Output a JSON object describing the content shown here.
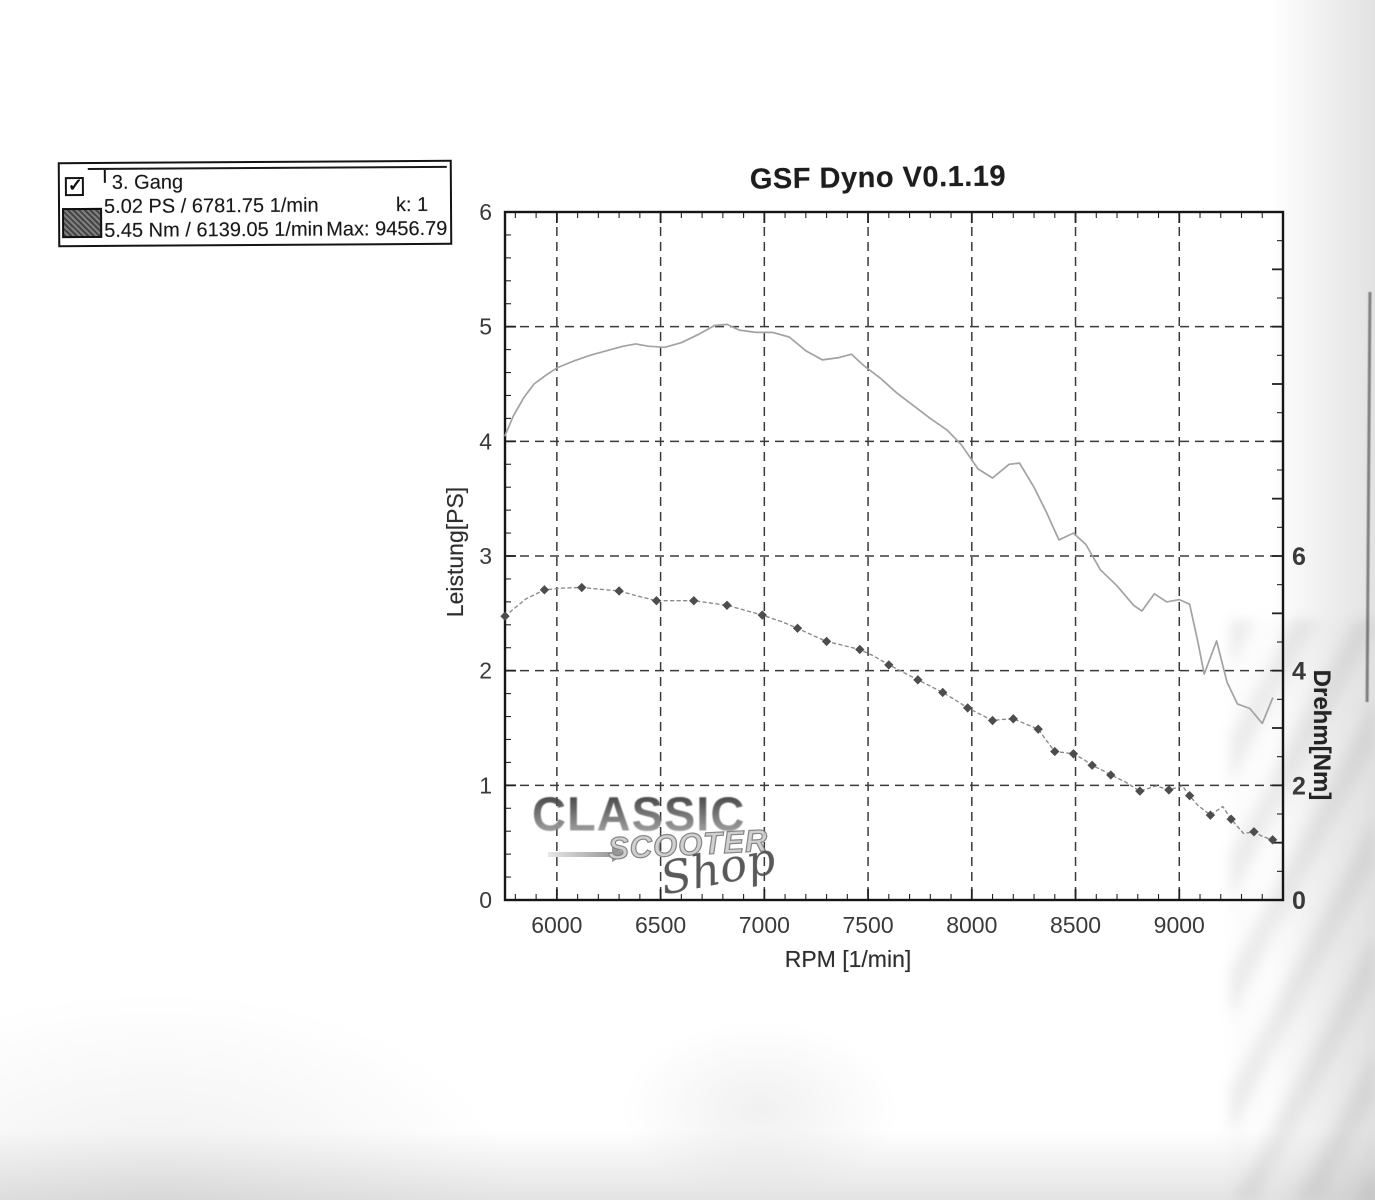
{
  "title": "GSF Dyno V0.1.19",
  "legend": {
    "checkbox_glyph": "✓",
    "gear_label": "3. Gang",
    "power_line": "5.02 PS / 6781.75 1/min",
    "k_label": "k: 1",
    "torque_line": "5.45 Nm / 6139.05 1/min",
    "max_label": "Max: 9456.79"
  },
  "watermark": {
    "line1": "CLASSIC",
    "line2": "SCOOTER",
    "line3": "Shop"
  },
  "chart_data": {
    "type": "line",
    "title": "GSF Dyno V0.1.19",
    "xlabel": "RPM [1/min]",
    "ylabel_left": "Leistung[PS]",
    "ylabel_right": "Drehm[Nm]",
    "x_range": [
      5750,
      9500
    ],
    "y_left_range": [
      0,
      6
    ],
    "y_right_range": [
      0,
      12
    ],
    "x_ticks": [
      6000,
      6500,
      7000,
      7500,
      8000,
      8500,
      9000
    ],
    "y_left_ticks": [
      0,
      1,
      2,
      3,
      4,
      5,
      6
    ],
    "y_right_ticks": [
      0,
      2,
      4,
      6
    ],
    "x_minor_step": 100,
    "y_left_minor_step": 0.2,
    "y_right_minor_step": 0.5,
    "grid": "dashed",
    "grid_color": "#3a3a3a",
    "frame_color": "#161616",
    "label_color": "#3a3a3a",
    "series": [
      {
        "name": "Leistung (PS)",
        "axis": "left",
        "style": "solid",
        "color": "#a2a2a2",
        "peak": "5.02 PS @ 6781.75 1/min",
        "points": [
          [
            5750,
            4.05
          ],
          [
            5790,
            4.22
          ],
          [
            5840,
            4.38
          ],
          [
            5890,
            4.5
          ],
          [
            5950,
            4.58
          ],
          [
            6000,
            4.64
          ],
          [
            6080,
            4.7
          ],
          [
            6160,
            4.75
          ],
          [
            6240,
            4.79
          ],
          [
            6320,
            4.83
          ],
          [
            6380,
            4.85
          ],
          [
            6440,
            4.83
          ],
          [
            6520,
            4.82
          ],
          [
            6600,
            4.86
          ],
          [
            6680,
            4.93
          ],
          [
            6760,
            5.01
          ],
          [
            6820,
            5.02
          ],
          [
            6880,
            4.97
          ],
          [
            6960,
            4.95
          ],
          [
            7040,
            4.95
          ],
          [
            7120,
            4.91
          ],
          [
            7200,
            4.79
          ],
          [
            7280,
            4.71
          ],
          [
            7360,
            4.73
          ],
          [
            7420,
            4.76
          ],
          [
            7480,
            4.66
          ],
          [
            7560,
            4.55
          ],
          [
            7640,
            4.42
          ],
          [
            7720,
            4.31
          ],
          [
            7800,
            4.2
          ],
          [
            7880,
            4.1
          ],
          [
            7950,
            3.97
          ],
          [
            8030,
            3.76
          ],
          [
            8100,
            3.68
          ],
          [
            8180,
            3.8
          ],
          [
            8230,
            3.81
          ],
          [
            8300,
            3.6
          ],
          [
            8360,
            3.38
          ],
          [
            8420,
            3.14
          ],
          [
            8490,
            3.2
          ],
          [
            8550,
            3.1
          ],
          [
            8620,
            2.88
          ],
          [
            8700,
            2.74
          ],
          [
            8780,
            2.57
          ],
          [
            8820,
            2.52
          ],
          [
            8880,
            2.67
          ],
          [
            8940,
            2.6
          ],
          [
            9000,
            2.62
          ],
          [
            9050,
            2.58
          ],
          [
            9090,
            2.25
          ],
          [
            9120,
            1.97
          ],
          [
            9180,
            2.26
          ],
          [
            9230,
            1.9
          ],
          [
            9280,
            1.71
          ],
          [
            9340,
            1.67
          ],
          [
            9400,
            1.54
          ],
          [
            9450,
            1.76
          ]
        ]
      },
      {
        "name": "Drehm (Nm)",
        "axis": "right",
        "style": "dotted-markers",
        "color": "#8c8c8c",
        "marker_color": "#4d4d4d",
        "marker_every": 2,
        "peak": "5.45 Nm @ 6139.05 1/min",
        "points": [
          [
            5750,
            4.95
          ],
          [
            5850,
            5.25
          ],
          [
            5940,
            5.41
          ],
          [
            6030,
            5.44
          ],
          [
            6120,
            5.45
          ],
          [
            6210,
            5.42
          ],
          [
            6300,
            5.39
          ],
          [
            6390,
            5.3
          ],
          [
            6480,
            5.22
          ],
          [
            6570,
            5.22
          ],
          [
            6660,
            5.22
          ],
          [
            6740,
            5.18
          ],
          [
            6820,
            5.14
          ],
          [
            6900,
            5.06
          ],
          [
            6990,
            4.97
          ],
          [
            7080,
            4.86
          ],
          [
            7160,
            4.74
          ],
          [
            7230,
            4.62
          ],
          [
            7300,
            4.51
          ],
          [
            7380,
            4.44
          ],
          [
            7460,
            4.37
          ],
          [
            7530,
            4.25
          ],
          [
            7600,
            4.1
          ],
          [
            7670,
            3.97
          ],
          [
            7740,
            3.84
          ],
          [
            7800,
            3.73
          ],
          [
            7860,
            3.62
          ],
          [
            7920,
            3.49
          ],
          [
            7980,
            3.35
          ],
          [
            8040,
            3.24
          ],
          [
            8100,
            3.13
          ],
          [
            8150,
            3.15
          ],
          [
            8200,
            3.16
          ],
          [
            8260,
            3.07
          ],
          [
            8320,
            2.98
          ],
          [
            8360,
            2.78
          ],
          [
            8400,
            2.59
          ],
          [
            8450,
            2.57
          ],
          [
            8490,
            2.55
          ],
          [
            8540,
            2.45
          ],
          [
            8580,
            2.35
          ],
          [
            8630,
            2.26
          ],
          [
            8670,
            2.18
          ],
          [
            8740,
            2.06
          ],
          [
            8810,
            1.9
          ],
          [
            8890,
            1.99
          ],
          [
            8950,
            1.92
          ],
          [
            9015,
            1.99
          ],
          [
            9050,
            1.82
          ],
          [
            9090,
            1.65
          ],
          [
            9150,
            1.48
          ],
          [
            9210,
            1.63
          ],
          [
            9250,
            1.41
          ],
          [
            9310,
            1.16
          ],
          [
            9360,
            1.19
          ],
          [
            9400,
            1.11
          ],
          [
            9450,
            1.05
          ]
        ]
      }
    ]
  }
}
